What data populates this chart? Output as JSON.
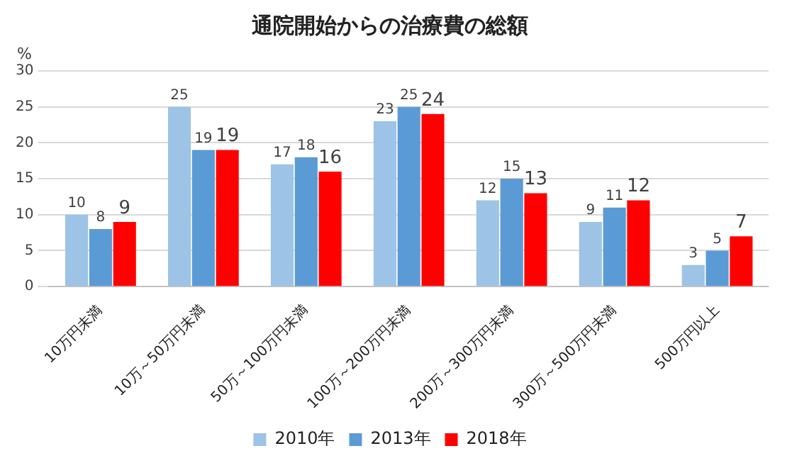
{
  "chart_data": {
    "type": "bar",
    "title": "通院開始からの治療費の総額",
    "ylabel": "%",
    "categories": [
      "10万円未満",
      "10万～50万円未満",
      "50万～100万円未満",
      "100万～200万円未満",
      "200万～300万円未満",
      "300万～500万円未満",
      "500万円以上"
    ],
    "series": [
      {
        "name": "2010年",
        "color": "#9dc3e6",
        "values": [
          10,
          25,
          17,
          23,
          12,
          9,
          3
        ]
      },
      {
        "name": "2013年",
        "color": "#5b9bd5",
        "values": [
          8,
          19,
          18,
          25,
          15,
          11,
          5
        ]
      },
      {
        "name": "2018年",
        "color": "#ff0000",
        "values": [
          9,
          19,
          16,
          24,
          13,
          12,
          7
        ]
      }
    ],
    "ylim": [
      0,
      30
    ],
    "yticks": [
      0,
      5,
      10,
      15,
      20,
      25,
      30
    ],
    "grid": "y",
    "legend": "bottom",
    "data_labels": true
  }
}
